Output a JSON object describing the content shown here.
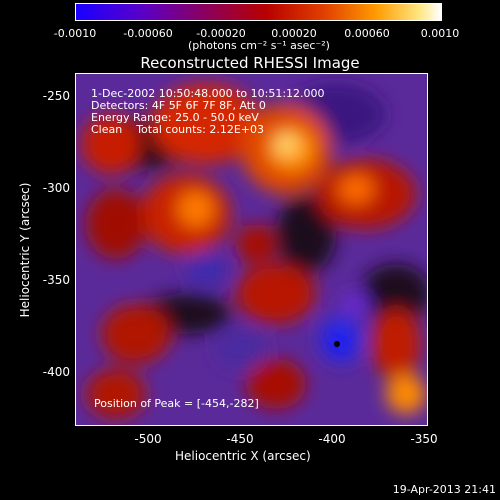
{
  "colorbar": {
    "ticks": [
      "-0.0010",
      "-0.00060",
      "-0.00020",
      "0.00020",
      "0.00060",
      "0.0010"
    ],
    "unit_label": "(photons cm⁻² s⁻¹ asec⁻²)"
  },
  "chart_data": {
    "type": "heatmap",
    "title": "Reconstructed RHESSI Image",
    "xlabel": "Heliocentric X (arcsec)",
    "ylabel": "Heliocentric Y (arcsec)",
    "xlim": [
      -540,
      -350
    ],
    "ylim": [
      -430,
      -240
    ],
    "x_ticks": [
      "-500",
      "-450",
      "-400",
      "-350"
    ],
    "y_ticks": [
      "-250",
      "-300",
      "-350",
      "-400"
    ],
    "color_range": [
      -0.001,
      0.001
    ],
    "annotations": {
      "time": "1-Dec-2002 10:50:48.000 to 10:51:12.000",
      "detectors": "Detectors: 4F 5F 6F 7F 8F, Att 0",
      "energy": "Energy Range: 25.0 - 50.0 keV",
      "clean": "Clean    Total counts: 2.12E+03",
      "peak": "Position of Peak = [-454,-282]"
    },
    "peak": [
      -454,
      -282
    ]
  },
  "footer": {
    "date": "19-Apr-2013 21:41"
  }
}
